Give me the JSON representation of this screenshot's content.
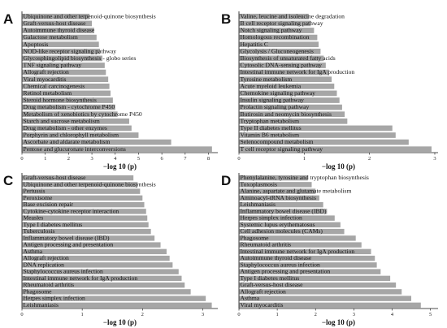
{
  "chart_data": [
    {
      "type": "bar",
      "orientation": "horizontal",
      "panel": "A",
      "xlabel": "−log 10 (p)",
      "xlim": [
        0,
        8.4
      ],
      "xticks": [
        0,
        1,
        2,
        3,
        4,
        5,
        6,
        7,
        8
      ],
      "categories": [
        "Ubiquinone and other terpenoid-quinone biosynthesis",
        "Graft-versus-host disease",
        "Autoimmune thyroid disease",
        "Galactose metabolism",
        "Apoptosis",
        "NOD-like receptor signaling pathway",
        "Glycosphingolipid biosynthesis - globo series",
        "TNF signaling pathway",
        "Allograft rejection",
        "Viral myocarditis",
        "Chemical carcinogenesis",
        "Retinol metabolism",
        "Steroid hormone biosynthesis",
        "Drug metabolism - cytochrome P450",
        "Metabolism of xenobiotics by cytochrome P450",
        "Starch and sucrose metabolism",
        "Drug metabolism - other enzymes",
        "Porphyrin and chlorophyll metabolism",
        "Ascorbate and aldarate metabolism",
        "Pentose and glucuronate interconversions"
      ],
      "values": [
        2.9,
        3.0,
        3.1,
        3.2,
        3.3,
        3.35,
        3.45,
        3.55,
        3.6,
        3.7,
        3.75,
        3.8,
        3.9,
        4.0,
        4.1,
        4.6,
        4.7,
        5.0,
        6.4,
        8.15
      ]
    },
    {
      "type": "bar",
      "orientation": "horizontal",
      "panel": "B",
      "xlabel": "−log 10 (p)",
      "xlim": [
        0,
        3.05
      ],
      "xticks": [
        0,
        1,
        2,
        3
      ],
      "categories": [
        "Valine, leucine and isoleucine degradation",
        "B cell receptor signaling pathway",
        "Notch signaling pathway",
        "Homologous recombination",
        "Hepatitis C",
        "Glycolysis / Gluconeogenesis",
        "Biosynthesis of unsaturated fatty acids",
        "Cytosolic DNA-sensing pathway",
        "Intestinal immune network for IgA production",
        "Tyrosine metabolism",
        "Acute myeloid leukemia",
        "Chemokine signaling pathway",
        "Insulin signaling pathway",
        "Prolactin signaling pathway",
        "Butirosin and neomycin biosynthesis",
        "Tryptophan metabolism",
        "Type II diabetes mellitus",
        "Vitamin B6 metabolism",
        "Selenocompound metabolism",
        "T cell receptor signaling pathway"
      ],
      "values": [
        1.07,
        1.1,
        1.15,
        1.2,
        1.22,
        1.25,
        1.3,
        1.33,
        1.38,
        1.42,
        1.46,
        1.5,
        1.54,
        1.58,
        1.62,
        1.66,
        2.35,
        2.4,
        2.6,
        2.95
      ]
    },
    {
      "type": "bar",
      "orientation": "horizontal",
      "panel": "C",
      "xlabel": "−log 10 (p)",
      "xlim": [
        0,
        3.25
      ],
      "xticks": [
        0,
        1,
        2,
        3
      ],
      "categories": [
        "Graft-versus-host disease",
        "Ubiquinone and other terpenoid-quinone biosynthesis",
        "Pertussis",
        "Peroxisome",
        "Base excision repair",
        "Cytokine-cytokine receptor interaction",
        "Measles",
        "Type I diabetes mellitus",
        "Tuberculosis",
        "Inflammatory bowel disease (IBD)",
        "Antigen processing and presentation",
        "Asthma",
        "Allograft rejection",
        "DNA replication",
        "Staphylococcus aureus infection",
        "Intestinal immune network for IgA production",
        "Rheumatoid arthritis",
        "Phagosome",
        "Herpes simplex infection",
        "Leishmaniasis"
      ],
      "values": [
        1.85,
        1.92,
        1.96,
        2.0,
        2.03,
        2.06,
        2.08,
        2.1,
        2.14,
        2.2,
        2.3,
        2.4,
        2.45,
        2.5,
        2.6,
        2.65,
        2.7,
        2.8,
        3.05,
        3.15
      ]
    },
    {
      "type": "bar",
      "orientation": "horizontal",
      "panel": "D",
      "xlabel": "−log 10 (p)",
      "xlim": [
        0,
        5.2
      ],
      "xticks": [
        0,
        1,
        2,
        3,
        4,
        5
      ],
      "categories": [
        "Phenylalanine, tyrosine and tryptophan biosynthesis",
        "Toxoplasmosis",
        "Alanine, aspartate and glutamate metabolism",
        "Aminoacyl-tRNA biosynthesis",
        "Leishmaniasis",
        "Inflammatory bowel disease (IBD)",
        "Herpes simplex infection",
        "Systemic lupus erythematosus",
        "Cell adhesion molecules (CAMs)",
        "Phagosome",
        "Rheumatoid arthritis",
        "Intestinal immune network for IgA production",
        "Autoimmune thyroid disease",
        "Staphylococcus aureus infection",
        "Antigen processing and presentation",
        "Type I diabetes mellitus",
        "Graft-versus-host disease",
        "Allograft rejection",
        "Asthma",
        "Viral myocarditis"
      ],
      "values": [
        1.8,
        1.9,
        2.0,
        2.1,
        2.2,
        2.3,
        2.5,
        2.65,
        2.75,
        3.05,
        3.2,
        3.45,
        3.55,
        3.6,
        3.7,
        3.95,
        4.1,
        4.25,
        4.5,
        4.75
      ]
    }
  ]
}
